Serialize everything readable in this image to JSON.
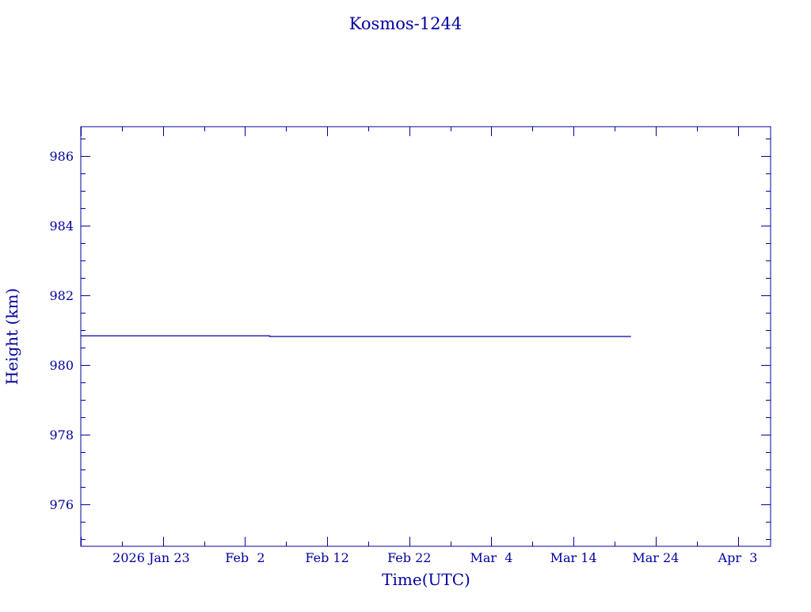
{
  "chart_data": {
    "type": "line",
    "title": "Kosmos-1244",
    "xlabel": "Time(UTC)",
    "ylabel": "Height (km)",
    "xlim": [
      "2026-01-13",
      "2026-04-07"
    ],
    "ylim": [
      974.8,
      986.84
    ],
    "x_ticks": [
      {
        "date": "2026-01-23",
        "label": "2026 Jan 23"
      },
      {
        "date": "2026-02-02",
        "label": "Feb  2"
      },
      {
        "date": "2026-02-12",
        "label": "Feb 12"
      },
      {
        "date": "2026-02-22",
        "label": "Feb 22"
      },
      {
        "date": "2026-03-04",
        "label": "Mar  4"
      },
      {
        "date": "2026-03-14",
        "label": "Mar 14"
      },
      {
        "date": "2026-03-24",
        "label": "Mar 24"
      },
      {
        "date": "2026-04-03",
        "label": "Apr  3"
      }
    ],
    "y_ticks": [
      976,
      978,
      980,
      982,
      984,
      986
    ],
    "grid": false,
    "color": "#0000a0",
    "series": [
      {
        "x": [
          "2026-01-13",
          "2026-02-05",
          "2026-02-05",
          "2026-03-21"
        ],
        "y": [
          980.84,
          980.84,
          980.82,
          980.82
        ]
      }
    ]
  }
}
